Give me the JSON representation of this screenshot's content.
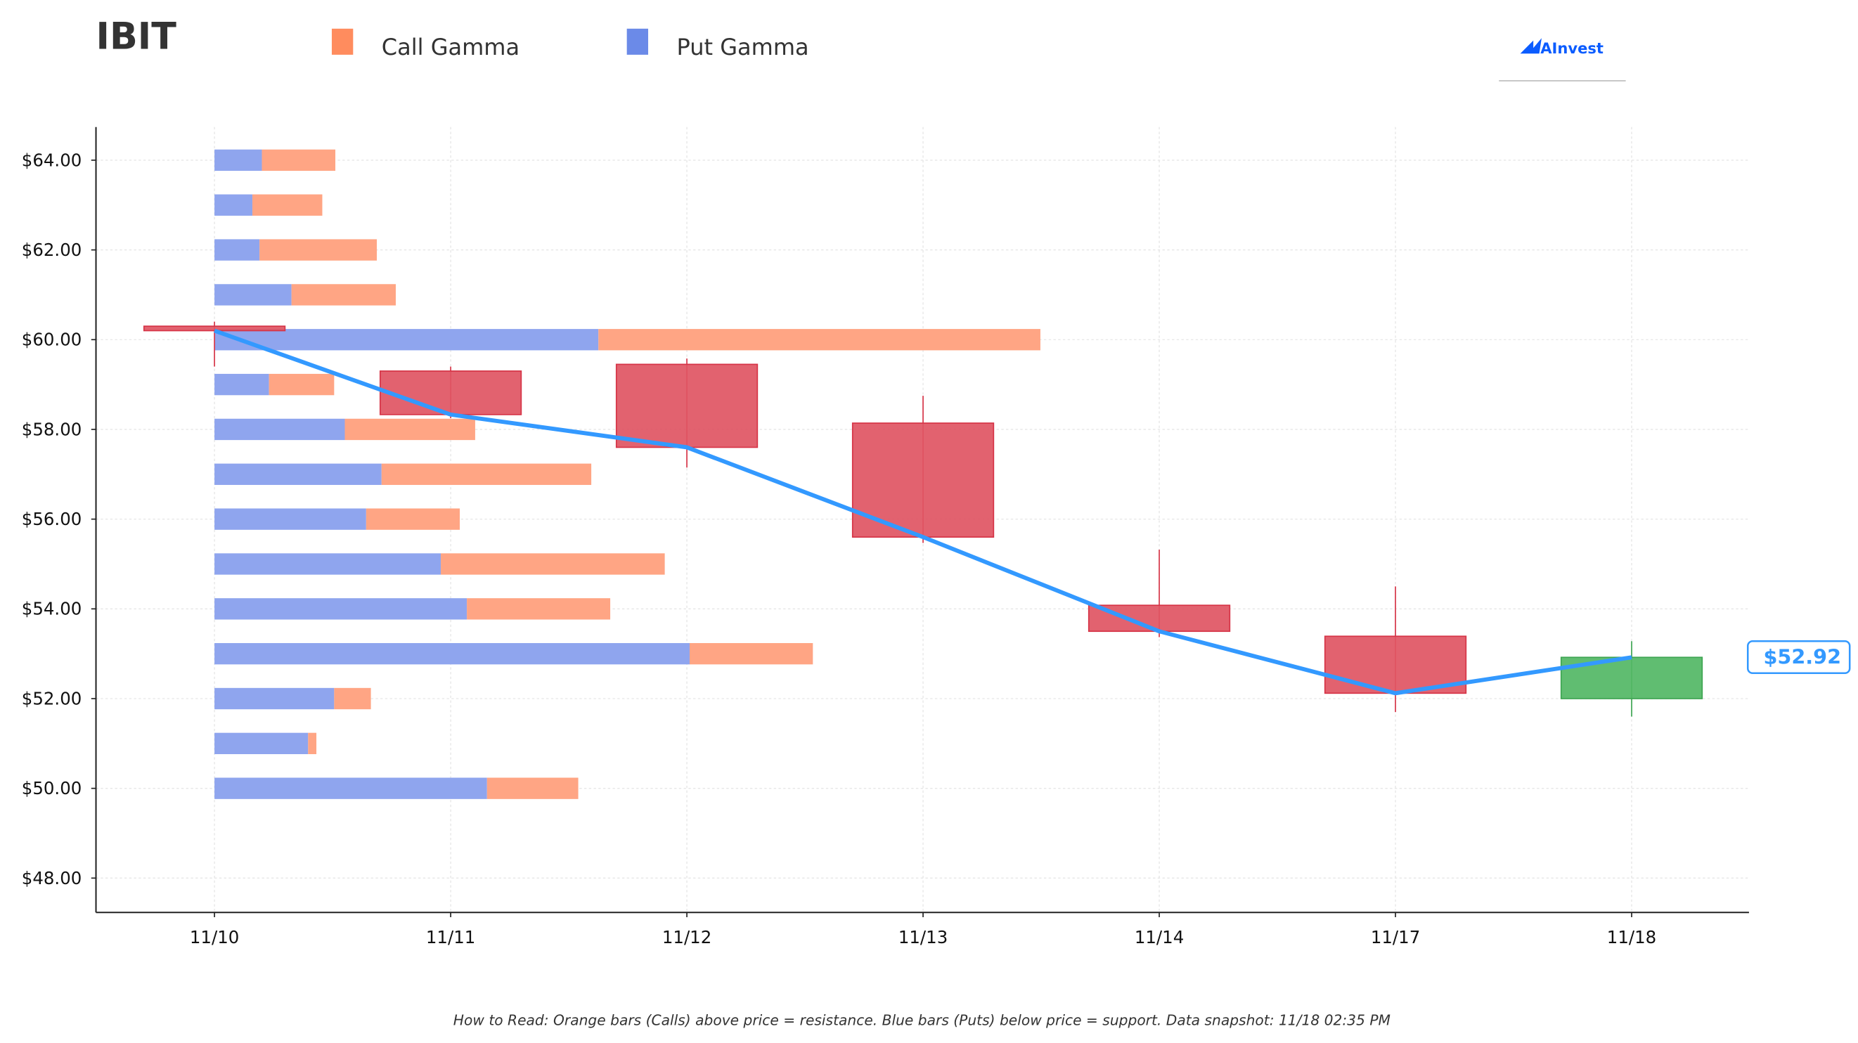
{
  "title": "IBIT",
  "logo_text": "AInvest",
  "legend": [
    {
      "label": "Call Gamma",
      "color": "#ff8c5e"
    },
    {
      "label": "Put Gamma",
      "color": "#6b8ae8"
    }
  ],
  "footer": "How to Read: Orange bars (Calls) above price = resistance. Blue bars (Puts) below price = support. Data snapshot: 11/18 02:35 PM",
  "colors": {
    "call_bar": "#ffa584",
    "put_bar": "#8fa5ee",
    "candle_down": "#e05563",
    "candle_down_edge": "#d63447",
    "candle_up": "#52b765",
    "candle_up_edge": "#3ea552",
    "price_line": "#3399ff",
    "axis": "#222222"
  },
  "chart_data": {
    "type": "candlestick",
    "categories": [
      "11/10",
      "11/11",
      "11/12",
      "11/13",
      "11/14",
      "11/17",
      "11/18"
    ],
    "ylim": [
      47.25,
      64.75
    ],
    "yticks": [
      "$48.00",
      "$50.00",
      "$52.00",
      "$54.00",
      "$56.00",
      "$58.00",
      "$60.00",
      "$62.00",
      "$64.00"
    ],
    "ytick_values": [
      48,
      50,
      52,
      54,
      56,
      58,
      60,
      62,
      64
    ],
    "grid": true,
    "ohlc": [
      {
        "date": "11/10",
        "open": 60.3,
        "high": 60.4,
        "low": 59.4,
        "close": 60.2
      },
      {
        "date": "11/11",
        "open": 59.3,
        "high": 59.4,
        "low": 58.25,
        "close": 58.33
      },
      {
        "date": "11/12",
        "open": 59.45,
        "high": 59.58,
        "low": 57.15,
        "close": 57.6
      },
      {
        "date": "11/13",
        "open": 58.14,
        "high": 58.75,
        "low": 55.47,
        "close": 55.6
      },
      {
        "date": "11/14",
        "open": 54.08,
        "high": 55.32,
        "low": 53.37,
        "close": 53.5
      },
      {
        "date": "11/17",
        "open": 53.39,
        "high": 54.5,
        "low": 51.7,
        "close": 52.12
      },
      {
        "date": "11/18",
        "open": 52.0,
        "high": 53.28,
        "low": 51.6,
        "close": 52.92
      }
    ],
    "last_price_label": "$52.92",
    "gamma": {
      "strikes": [
        64,
        63,
        62,
        61,
        60,
        59,
        58,
        57,
        56,
        55,
        54,
        53,
        52,
        51,
        50
      ],
      "put": [
        40,
        32,
        38,
        65,
        324,
        46,
        110,
        141,
        128,
        191,
        213,
        401,
        101,
        79,
        230
      ],
      "call": [
        62,
        59,
        99,
        88,
        373,
        55,
        110,
        177,
        79,
        189,
        121,
        104,
        31,
        7,
        77
      ]
    }
  }
}
